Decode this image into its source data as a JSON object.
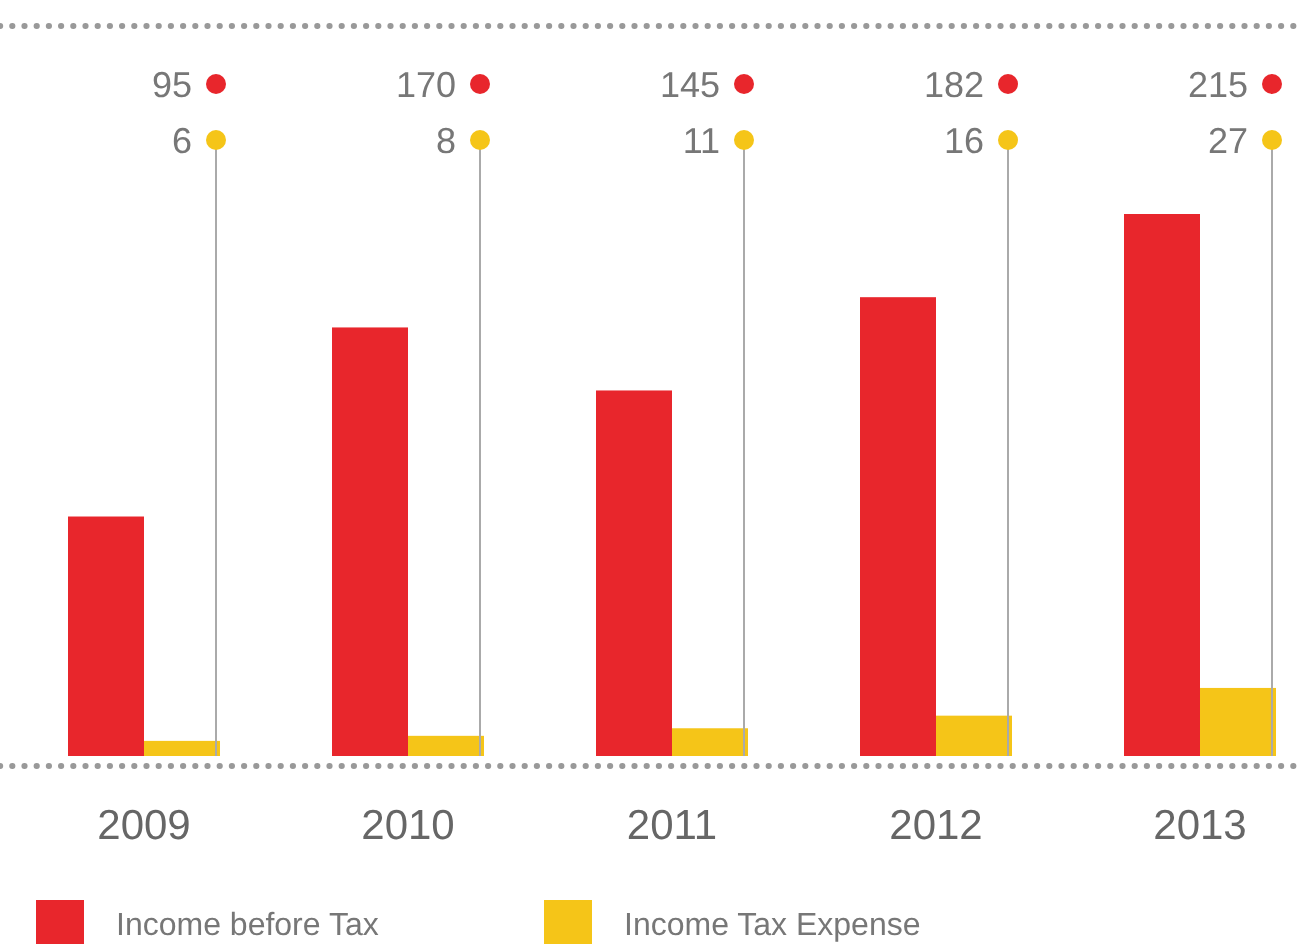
{
  "chart_data": {
    "type": "bar",
    "categories": [
      "2009",
      "2010",
      "2011",
      "2012",
      "2013"
    ],
    "series": [
      {
        "name": "Income before Tax",
        "color": "#e8262c",
        "values": [
          95,
          170,
          145,
          182,
          215
        ]
      },
      {
        "name": "Income Tax Expense",
        "color": "#f5c518",
        "values": [
          6,
          8,
          11,
          16,
          27
        ]
      }
    ],
    "data_labels": true,
    "legend": "bottom"
  }
}
